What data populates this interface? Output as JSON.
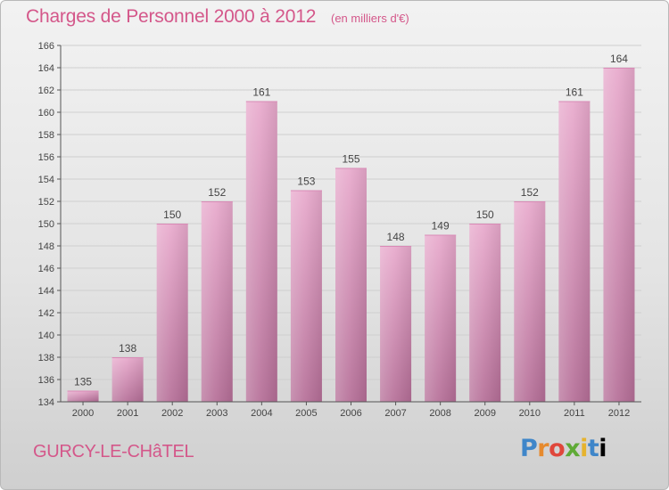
{
  "header": {
    "title": "Charges de Personnel 2000 à 2012",
    "subtitle": "(en milliers d'€)"
  },
  "footer": {
    "city": "GURCY-LE-CHâTEL",
    "brand": [
      "P",
      "r",
      "o",
      "x",
      "i",
      "t",
      "i"
    ]
  },
  "colors": {
    "accent": "#d4578a",
    "bar_light": "#e8a9cc",
    "bar_dark": "#b56e97",
    "axis": "#555555",
    "grid": "#cfcfcf"
  },
  "chart_data": {
    "type": "bar",
    "categories": [
      "2000",
      "2001",
      "2002",
      "2003",
      "2004",
      "2005",
      "2006",
      "2007",
      "2008",
      "2009",
      "2010",
      "2011",
      "2012"
    ],
    "values": [
      135,
      138,
      150,
      152,
      161,
      153,
      155,
      148,
      149,
      150,
      152,
      161,
      164
    ],
    "ylim": [
      134,
      166
    ],
    "yticks": [
      134,
      136,
      138,
      140,
      142,
      144,
      146,
      148,
      150,
      152,
      154,
      156,
      158,
      160,
      162,
      164,
      166
    ],
    "grid": true,
    "title": "Charges de Personnel 2000 à 2012",
    "ylabel": "(en milliers d'€)"
  }
}
